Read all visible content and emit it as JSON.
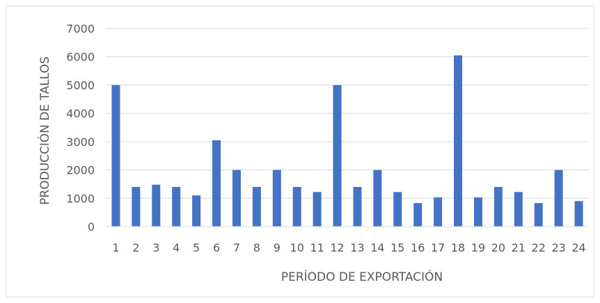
{
  "chart_data": {
    "type": "bar",
    "title": "",
    "xlabel": "PERÍODO DE EXPORTACIÓN",
    "ylabel": "PRODUCCIÓN DE TALLOS",
    "ylim": [
      0,
      7000
    ],
    "yticks": [
      0,
      1000,
      2000,
      3000,
      4000,
      5000,
      6000,
      7000
    ],
    "grid": true,
    "legend": "none",
    "bar_color": "#4472c4",
    "grid_color": "#d9d9d9",
    "categories": [
      "1",
      "2",
      "3",
      "4",
      "5",
      "6",
      "7",
      "8",
      "9",
      "10",
      "11",
      "12",
      "13",
      "14",
      "15",
      "16",
      "17",
      "18",
      "19",
      "20",
      "21",
      "22",
      "23",
      "24"
    ],
    "values": [
      5000,
      1400,
      1480,
      1400,
      1100,
      3050,
      2000,
      1400,
      2000,
      1400,
      1220,
      5000,
      1400,
      2000,
      1220,
      830,
      1030,
      6050,
      1030,
      1400,
      1220,
      830,
      2000,
      900
    ]
  }
}
